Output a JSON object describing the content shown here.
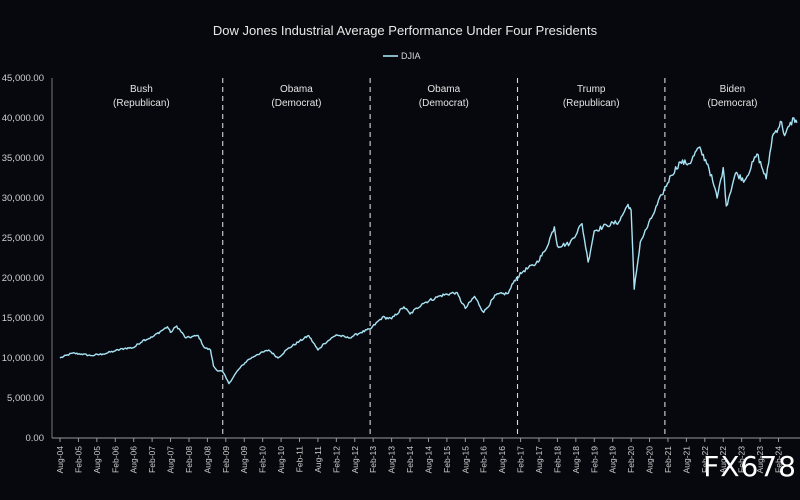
{
  "chart_data": {
    "type": "line",
    "title": "Dow Jones Industrial Average Performance Under Four Presidents",
    "legend": [
      "DJIA"
    ],
    "legend_position": "top-center",
    "grid": false,
    "series": [
      {
        "name": "DJIA",
        "color": "#a7e3f3",
        "points": [
          [
            "2004-08",
            10000
          ],
          [
            "2004-12",
            10600
          ],
          [
            "2005-03",
            10500
          ],
          [
            "2005-06",
            10300
          ],
          [
            "2005-10",
            10500
          ],
          [
            "2006-02",
            10900
          ],
          [
            "2006-05",
            11200
          ],
          [
            "2006-08",
            11300
          ],
          [
            "2006-11",
            12200
          ],
          [
            "2007-02",
            12600
          ],
          [
            "2007-05",
            13400
          ],
          [
            "2007-07",
            13900
          ],
          [
            "2007-08",
            13200
          ],
          [
            "2007-10",
            14000
          ],
          [
            "2008-01",
            12500
          ],
          [
            "2008-05",
            12800
          ],
          [
            "2008-07",
            11300
          ],
          [
            "2008-09",
            11000
          ],
          [
            "2008-10",
            9000
          ],
          [
            "2008-11",
            8500
          ],
          [
            "2009-01",
            8300
          ],
          [
            "2009-03",
            6800
          ],
          [
            "2009-06",
            8500
          ],
          [
            "2009-09",
            9700
          ],
          [
            "2009-12",
            10400
          ],
          [
            "2010-04",
            11000
          ],
          [
            "2010-07",
            10000
          ],
          [
            "2010-10",
            11100
          ],
          [
            "2011-02",
            12100
          ],
          [
            "2011-05",
            12800
          ],
          [
            "2011-08",
            11000
          ],
          [
            "2011-10",
            11800
          ],
          [
            "2012-02",
            12900
          ],
          [
            "2012-06",
            12500
          ],
          [
            "2012-10",
            13200
          ],
          [
            "2013-01",
            13600
          ],
          [
            "2013-05",
            15100
          ],
          [
            "2013-08",
            14900
          ],
          [
            "2013-12",
            16400
          ],
          [
            "2014-02",
            15500
          ],
          [
            "2014-06",
            16800
          ],
          [
            "2014-12",
            17800
          ],
          [
            "2015-05",
            18200
          ],
          [
            "2015-08",
            16200
          ],
          [
            "2015-11",
            17700
          ],
          [
            "2016-02",
            15700
          ],
          [
            "2016-06",
            17900
          ],
          [
            "2016-10",
            18100
          ],
          [
            "2016-12",
            19700
          ],
          [
            "2017-03",
            20900
          ],
          [
            "2017-07",
            21800
          ],
          [
            "2017-10",
            23400
          ],
          [
            "2018-01",
            26400
          ],
          [
            "2018-02",
            24000
          ],
          [
            "2018-06",
            24300
          ],
          [
            "2018-10",
            26800
          ],
          [
            "2018-12",
            22000
          ],
          [
            "2019-02",
            25900
          ],
          [
            "2019-06",
            26600
          ],
          [
            "2019-10",
            27000
          ],
          [
            "2020-01",
            29200
          ],
          [
            "2020-02",
            28500
          ],
          [
            "2020-03",
            18600
          ],
          [
            "2020-05",
            24500
          ],
          [
            "2020-09",
            27800
          ],
          [
            "2020-12",
            30400
          ],
          [
            "2021-03",
            32800
          ],
          [
            "2021-06",
            34500
          ],
          [
            "2021-09",
            34300
          ],
          [
            "2021-12",
            36300
          ],
          [
            "2022-03",
            34200
          ],
          [
            "2022-05",
            31500
          ],
          [
            "2022-06",
            30000
          ],
          [
            "2022-08",
            33800
          ],
          [
            "2022-09",
            29000
          ],
          [
            "2022-12",
            33100
          ],
          [
            "2023-03",
            32200
          ],
          [
            "2023-07",
            35500
          ],
          [
            "2023-10",
            32400
          ],
          [
            "2023-12",
            37700
          ],
          [
            "2024-03",
            39500
          ],
          [
            "2024-04",
            37800
          ],
          [
            "2024-07",
            40000
          ],
          [
            "2024-08",
            39400
          ]
        ]
      }
    ],
    "y_axis": {
      "min": 0,
      "max": 45000,
      "ticks": [
        0,
        5000,
        10000,
        15000,
        20000,
        25000,
        30000,
        35000,
        40000,
        45000
      ],
      "tick_labels": [
        "0.00",
        "5,000.00",
        "10,000.00",
        "15,000.00",
        "20,000.00",
        "25,000.00",
        "30,000.00",
        "35,000.00",
        "40,000.00",
        "45,000.00"
      ]
    },
    "x_axis": {
      "start": "2004-08",
      "end": "2024-09",
      "tick_labels": [
        "Aug-04",
        "Feb-05",
        "Aug-05",
        "Feb-06",
        "Aug-06",
        "Feb-07",
        "Aug-07",
        "Feb-08",
        "Aug-08",
        "Feb-09",
        "Aug-09",
        "Feb-10",
        "Aug-10",
        "Feb-11",
        "Aug-11",
        "Feb-12",
        "Aug-12",
        "Feb-13",
        "Aug-13",
        "Feb-14",
        "Aug-14",
        "Feb-15",
        "Aug-15",
        "Feb-16",
        "Aug-16",
        "Feb-17",
        "Aug-17",
        "Feb-18",
        "Aug-18",
        "Feb-19",
        "Aug-19",
        "Feb-20",
        "Aug-20",
        "Feb-21",
        "Aug-21",
        "Feb-22",
        "Aug-22",
        "Feb-23",
        "Aug-23",
        "Feb-24"
      ]
    },
    "presidencies": [
      {
        "name": "Bush",
        "party": "(Republican)",
        "end": "2009-01"
      },
      {
        "name": "Obama",
        "party": "(Democrat)",
        "end": "2013-01"
      },
      {
        "name": "Obama",
        "party": "(Democrat)",
        "end": "2017-01"
      },
      {
        "name": "Trump",
        "party": "(Republican)",
        "end": "2021-01"
      },
      {
        "name": "Biden",
        "party": "(Democrat)",
        "end": null
      }
    ]
  },
  "watermark": "FX678"
}
